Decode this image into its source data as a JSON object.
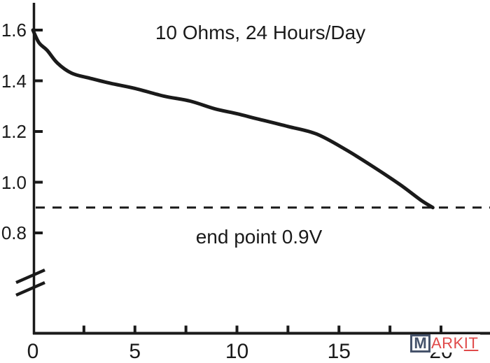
{
  "watermark": {
    "boxed_letter": "M",
    "text_plain": "ARK",
    "text_underlined": "IT",
    "box_color": "#46536b",
    "text_color": "#e04a4a"
  },
  "chart_data": {
    "type": "line",
    "title": "10 Ohms, 24 Hours/Day",
    "xlabel": "",
    "ylabel": "",
    "line_color": "#1a1a1a",
    "background_color": "#ffffff",
    "grid": false,
    "x_axis": {
      "min": 0,
      "max": 22.4,
      "major_ticks": [
        0,
        5,
        10,
        15,
        20
      ],
      "major_tick_labels": [
        "0",
        "5",
        "10",
        "15",
        "20"
      ],
      "minor_ticks": [
        2.5,
        7.5,
        12.5,
        17.5
      ]
    },
    "y_axis": {
      "ticks": [
        1.6,
        1.4,
        1.2,
        1.0,
        0.8
      ],
      "tick_labels": [
        "1.6",
        "1.4",
        "1.2",
        "1.0",
        "0.8"
      ],
      "axis_break": true
    },
    "reference_line": {
      "y": 0.9,
      "style": "dashed",
      "label": "end point 0.9V"
    },
    "series": [
      {
        "name": "discharge-curve",
        "points": [
          [
            0,
            1.6
          ],
          [
            0.3,
            1.55
          ],
          [
            0.7,
            1.52
          ],
          [
            1.2,
            1.47
          ],
          [
            1.9,
            1.43
          ],
          [
            2.8,
            1.41
          ],
          [
            3.8,
            1.39
          ],
          [
            5.0,
            1.37
          ],
          [
            6.4,
            1.34
          ],
          [
            7.7,
            1.32
          ],
          [
            8.9,
            1.29
          ],
          [
            10.0,
            1.27
          ],
          [
            11.0,
            1.25
          ],
          [
            12.5,
            1.22
          ],
          [
            13.9,
            1.19
          ],
          [
            15.3,
            1.13
          ],
          [
            16.7,
            1.06
          ],
          [
            18.0,
            0.99
          ],
          [
            19.0,
            0.93
          ],
          [
            19.6,
            0.9
          ]
        ]
      }
    ]
  }
}
